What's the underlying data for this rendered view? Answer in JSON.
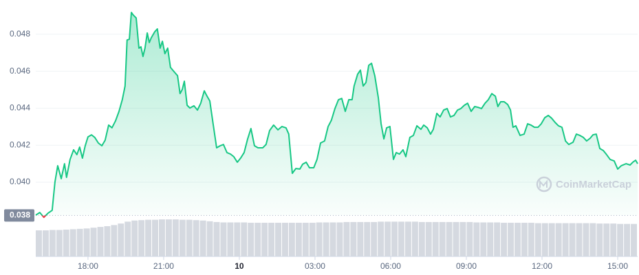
{
  "chart_data": {
    "type": "line",
    "color": "#16c784",
    "down_color": "#ea3943",
    "grid": true,
    "watermark": "CoinMarketCap",
    "baseline": {
      "value": 0.0382,
      "label": "0.038"
    },
    "xlim": [
      15.93,
      39.79
    ],
    "ylim": [
      0.03803,
      0.04948
    ],
    "yticks": [
      {
        "value": 0.04,
        "label": "0.040"
      },
      0.042,
      0.044,
      0.046,
      0.048
    ],
    "xticks": [
      {
        "value": 18,
        "label": "18:00"
      },
      {
        "value": 21,
        "label": "21:00"
      },
      {
        "value": 24,
        "label": "10"
      },
      {
        "value": 27,
        "label": "03:00"
      },
      {
        "value": 30,
        "label": "06:00"
      },
      {
        "value": 33,
        "label": "09:00"
      },
      {
        "value": 36,
        "label": "12:00"
      },
      {
        "value": 39,
        "label": "15:00"
      }
    ],
    "x": [
      15.93,
      16.09,
      16.25,
      16.42,
      16.58,
      16.69,
      16.8,
      16.94,
      17.07,
      17.15,
      17.29,
      17.43,
      17.56,
      17.67,
      17.78,
      17.89,
      18.0,
      18.14,
      18.27,
      18.41,
      18.55,
      18.68,
      18.82,
      18.95,
      19.09,
      19.23,
      19.36,
      19.47,
      19.55,
      19.64,
      19.72,
      19.8,
      19.91,
      20.02,
      20.1,
      20.18,
      20.26,
      20.35,
      20.43,
      20.51,
      20.65,
      20.75,
      20.86,
      20.95,
      21.05,
      21.16,
      21.27,
      21.41,
      21.55,
      21.65,
      21.74,
      21.82,
      21.93,
      22.04,
      22.2,
      22.34,
      22.47,
      22.61,
      22.72,
      22.83,
      22.96,
      23.1,
      23.24,
      23.37,
      23.51,
      23.65,
      23.78,
      23.92,
      24.05,
      24.19,
      24.33,
      24.46,
      24.6,
      24.74,
      24.93,
      25.06,
      25.2,
      25.36,
      25.53,
      25.69,
      25.85,
      25.96,
      26.1,
      26.24,
      26.4,
      26.51,
      26.65,
      26.78,
      26.95,
      27.08,
      27.22,
      27.38,
      27.52,
      27.65,
      27.79,
      27.93,
      28.06,
      28.2,
      28.34,
      28.47,
      28.55,
      28.69,
      28.8,
      28.91,
      29.02,
      29.13,
      29.24,
      29.37,
      29.51,
      29.62,
      29.73,
      29.84,
      29.97,
      30.11,
      30.22,
      30.35,
      30.49,
      30.6,
      30.76,
      30.9,
      31.04,
      31.2,
      31.31,
      31.45,
      31.58,
      31.69,
      31.83,
      31.96,
      32.1,
      32.24,
      32.37,
      32.51,
      32.65,
      32.78,
      32.92,
      33.05,
      33.19,
      33.33,
      33.46,
      33.6,
      33.74,
      33.87,
      34.01,
      34.15,
      34.25,
      34.36,
      34.5,
      34.64,
      34.75,
      34.85,
      34.96,
      35.13,
      35.29,
      35.43,
      35.56,
      35.7,
      35.84,
      35.97,
      36.11,
      36.25,
      36.38,
      36.52,
      36.65,
      36.79,
      36.93,
      37.06,
      37.23,
      37.36,
      37.5,
      37.64,
      37.77,
      37.91,
      38.02,
      38.15,
      38.29,
      38.43,
      38.56,
      38.7,
      38.86,
      39.0,
      39.14,
      39.33,
      39.49,
      39.6,
      39.71,
      39.79
    ],
    "values": [
      0.03822,
      0.03836,
      0.0381,
      0.03833,
      0.03848,
      0.04,
      0.04089,
      0.04019,
      0.041,
      0.04026,
      0.04123,
      0.04175,
      0.04149,
      0.0419,
      0.0413,
      0.04197,
      0.04245,
      0.04256,
      0.04242,
      0.04212,
      0.04197,
      0.04227,
      0.04309,
      0.04294,
      0.04331,
      0.04383,
      0.04446,
      0.0452,
      0.04769,
      0.04773,
      0.04918,
      0.04903,
      0.04888,
      0.04725,
      0.04732,
      0.0468,
      0.04725,
      0.04807,
      0.04755,
      0.04781,
      0.04814,
      0.04829,
      0.04725,
      0.04762,
      0.04695,
      0.04725,
      0.04621,
      0.04598,
      0.04576,
      0.04479,
      0.04502,
      0.04546,
      0.04416,
      0.04401,
      0.04413,
      0.0439,
      0.04427,
      0.04494,
      0.04465,
      0.04439,
      0.04316,
      0.04186,
      0.04197,
      0.04204,
      0.0416,
      0.04152,
      0.04138,
      0.04108,
      0.0413,
      0.0416,
      0.04234,
      0.0429,
      0.04197,
      0.04186,
      0.04186,
      0.04204,
      0.04279,
      0.04309,
      0.04283,
      0.04301,
      0.04294,
      0.0426,
      0.04048,
      0.04074,
      0.04071,
      0.04097,
      0.04108,
      0.04078,
      0.04078,
      0.04123,
      0.04212,
      0.04223,
      0.04301,
      0.04335,
      0.04398,
      0.04446,
      0.04453,
      0.04383,
      0.04446,
      0.04446,
      0.0452,
      0.04584,
      0.04606,
      0.0452,
      0.04539,
      0.04632,
      0.04643,
      0.04576,
      0.04457,
      0.04316,
      0.04234,
      0.04294,
      0.04301,
      0.04123,
      0.0416,
      0.04152,
      0.04175,
      0.04138,
      0.04242,
      0.04253,
      0.04305,
      0.04286,
      0.04309,
      0.04294,
      0.0426,
      0.04286,
      0.04372,
      0.04353,
      0.0439,
      0.04398,
      0.04353,
      0.04361,
      0.0439,
      0.04398,
      0.04416,
      0.04427,
      0.04383,
      0.04409,
      0.04405,
      0.04398,
      0.04427,
      0.04446,
      0.04479,
      0.04465,
      0.04409,
      0.04435,
      0.04435,
      0.0442,
      0.0439,
      0.04297,
      0.04305,
      0.04253,
      0.0426,
      0.04316,
      0.04309,
      0.04297,
      0.04297,
      0.04316,
      0.04349,
      0.04361,
      0.04346,
      0.04323,
      0.04305,
      0.04297,
      0.04223,
      0.04204,
      0.04216,
      0.0426,
      0.04253,
      0.04242,
      0.04223,
      0.04238,
      0.04256,
      0.0426,
      0.04182,
      0.04171,
      0.04149,
      0.04123,
      0.04115,
      0.04071,
      0.04089,
      0.041,
      0.04093,
      0.04108,
      0.04119,
      0.041
    ],
    "volume": {
      "color": "#d5d9e0",
      "ylim": [
        0,
        100
      ],
      "values": [
        69,
        69,
        70,
        70,
        71,
        72,
        73,
        74,
        76,
        78,
        80,
        83,
        87,
        92,
        95,
        96,
        97,
        97,
        98,
        98,
        98,
        97,
        97,
        96,
        95,
        93,
        91,
        90,
        90,
        90,
        90,
        89,
        89,
        89,
        89,
        89,
        89,
        89,
        89,
        89,
        89,
        90,
        90,
        90,
        90,
        91,
        91,
        91,
        91,
        91,
        92,
        92,
        92,
        92,
        92,
        92,
        91,
        91,
        91,
        91,
        91,
        91,
        91,
        91,
        90,
        90,
        90,
        90,
        89,
        89,
        89,
        89,
        89,
        88,
        88,
        88,
        88,
        88,
        88,
        88,
        88,
        88,
        87,
        87,
        87,
        86,
        86,
        86
      ]
    }
  }
}
